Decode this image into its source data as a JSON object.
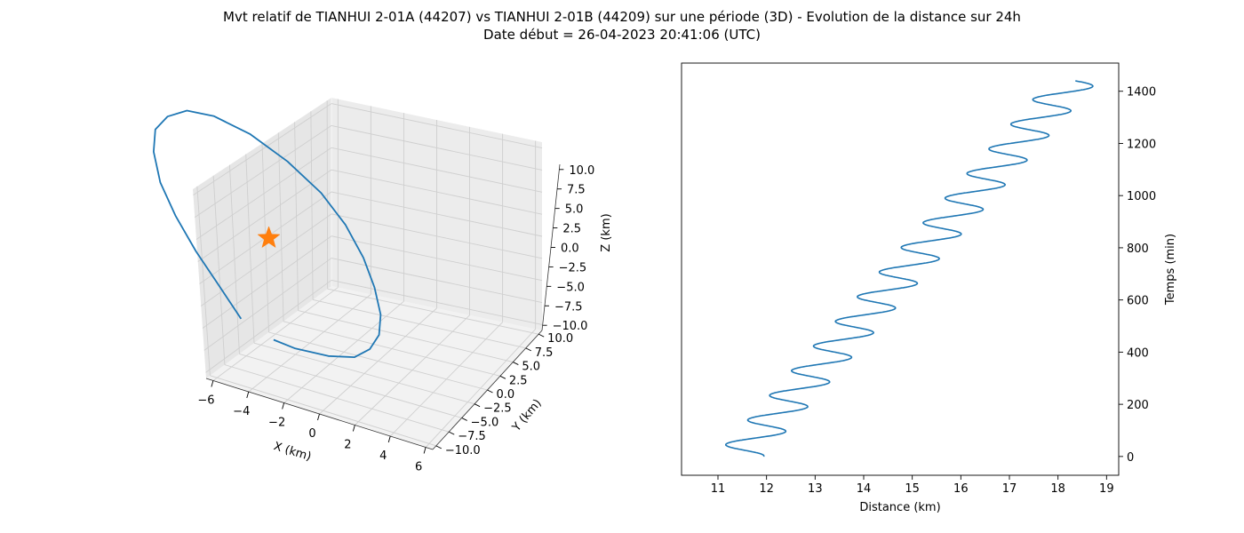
{
  "title_line1": "Mvt relatif de TIANHUI 2-01A (44207) vs TIANHUI 2-01B (44209) sur une période (3D) - Evolution de la distance sur 24h",
  "title_line2": "Date début = 26-04-2023 20:41:06 (UTC)",
  "colors": {
    "series": "#1f77b4",
    "marker": "#ff7f0e",
    "pane": "#f2f2f2",
    "grid": "#d0d0d0"
  },
  "chart_data": [
    {
      "type": "line3d",
      "xlabel": "X (km)",
      "ylabel": "Y (km)",
      "zlabel": "Z (km)",
      "xlim": [
        -6,
        6
      ],
      "ylim": [
        -10,
        10
      ],
      "zlim": [
        -10,
        10
      ],
      "x_ticks": [
        "−6",
        "−4",
        "−2",
        "0",
        "2",
        "4",
        "6"
      ],
      "y_ticks": [
        "−10.0",
        "−7.5",
        "−5.0",
        "−2.5",
        "0.0",
        "2.5",
        "5.0",
        "7.5",
        "10.0"
      ],
      "z_ticks": [
        "−10.0",
        "−7.5",
        "−5.0",
        "−2.5",
        "0.0",
        "2.5",
        "5.0",
        "7.5",
        "10.0"
      ],
      "grid": true,
      "series": [
        {
          "x": [
            0.2,
            1.0,
            2.3,
            3.2,
            3.6,
            3.8,
            3.7,
            3.4,
            3.0,
            2.4,
            1.6,
            0.4,
            -0.9,
            -2.2,
            -3.1,
            -3.7,
            -4.0,
            -3.9,
            -3.6,
            -3.0,
            -2.3,
            -1.6,
            -1.2
          ],
          "y": [
            -0.2,
            -1.5,
            -3.2,
            -5.0,
            -6.5,
            -7.6,
            -8.3,
            -8.2,
            -7.5,
            -6.2,
            -4.4,
            -2.2,
            0.3,
            2.6,
            4.6,
            6.2,
            7.5,
            8.2,
            8.0,
            7.2,
            5.8,
            3.8,
            1.0
          ],
          "z": [
            -10.5,
            -9.8,
            -8.3,
            -6.3,
            -3.9,
            -1.3,
            1.4,
            4.0,
            6.3,
            8.3,
            9.6,
            10.3,
            10.2,
            9.3,
            7.6,
            5.2,
            2.5,
            -0.4,
            -3.3,
            -5.8,
            -7.9,
            -9.4,
            -10.2
          ]
        }
      ],
      "marker": {
        "x": 0,
        "y": 0,
        "z": 0,
        "shape": "star"
      }
    },
    {
      "type": "line",
      "xlabel": "Distance (km)",
      "ylabel": "Temps (min)",
      "xlim": [
        10.25,
        19.25
      ],
      "ylim": [
        -72,
        1508
      ],
      "x_ticks": [
        11,
        12,
        13,
        14,
        15,
        16,
        17,
        18,
        19
      ],
      "y_ticks": [
        0,
        200,
        400,
        600,
        800,
        1000,
        1200,
        1400
      ],
      "y_axis_side": "right",
      "grid": false,
      "model": {
        "t_max": 1440,
        "period": 94.5,
        "d_start": 11.44,
        "d_end": 18.32,
        "amplitude": 0.5,
        "phase_deg": 180
      }
    }
  ]
}
